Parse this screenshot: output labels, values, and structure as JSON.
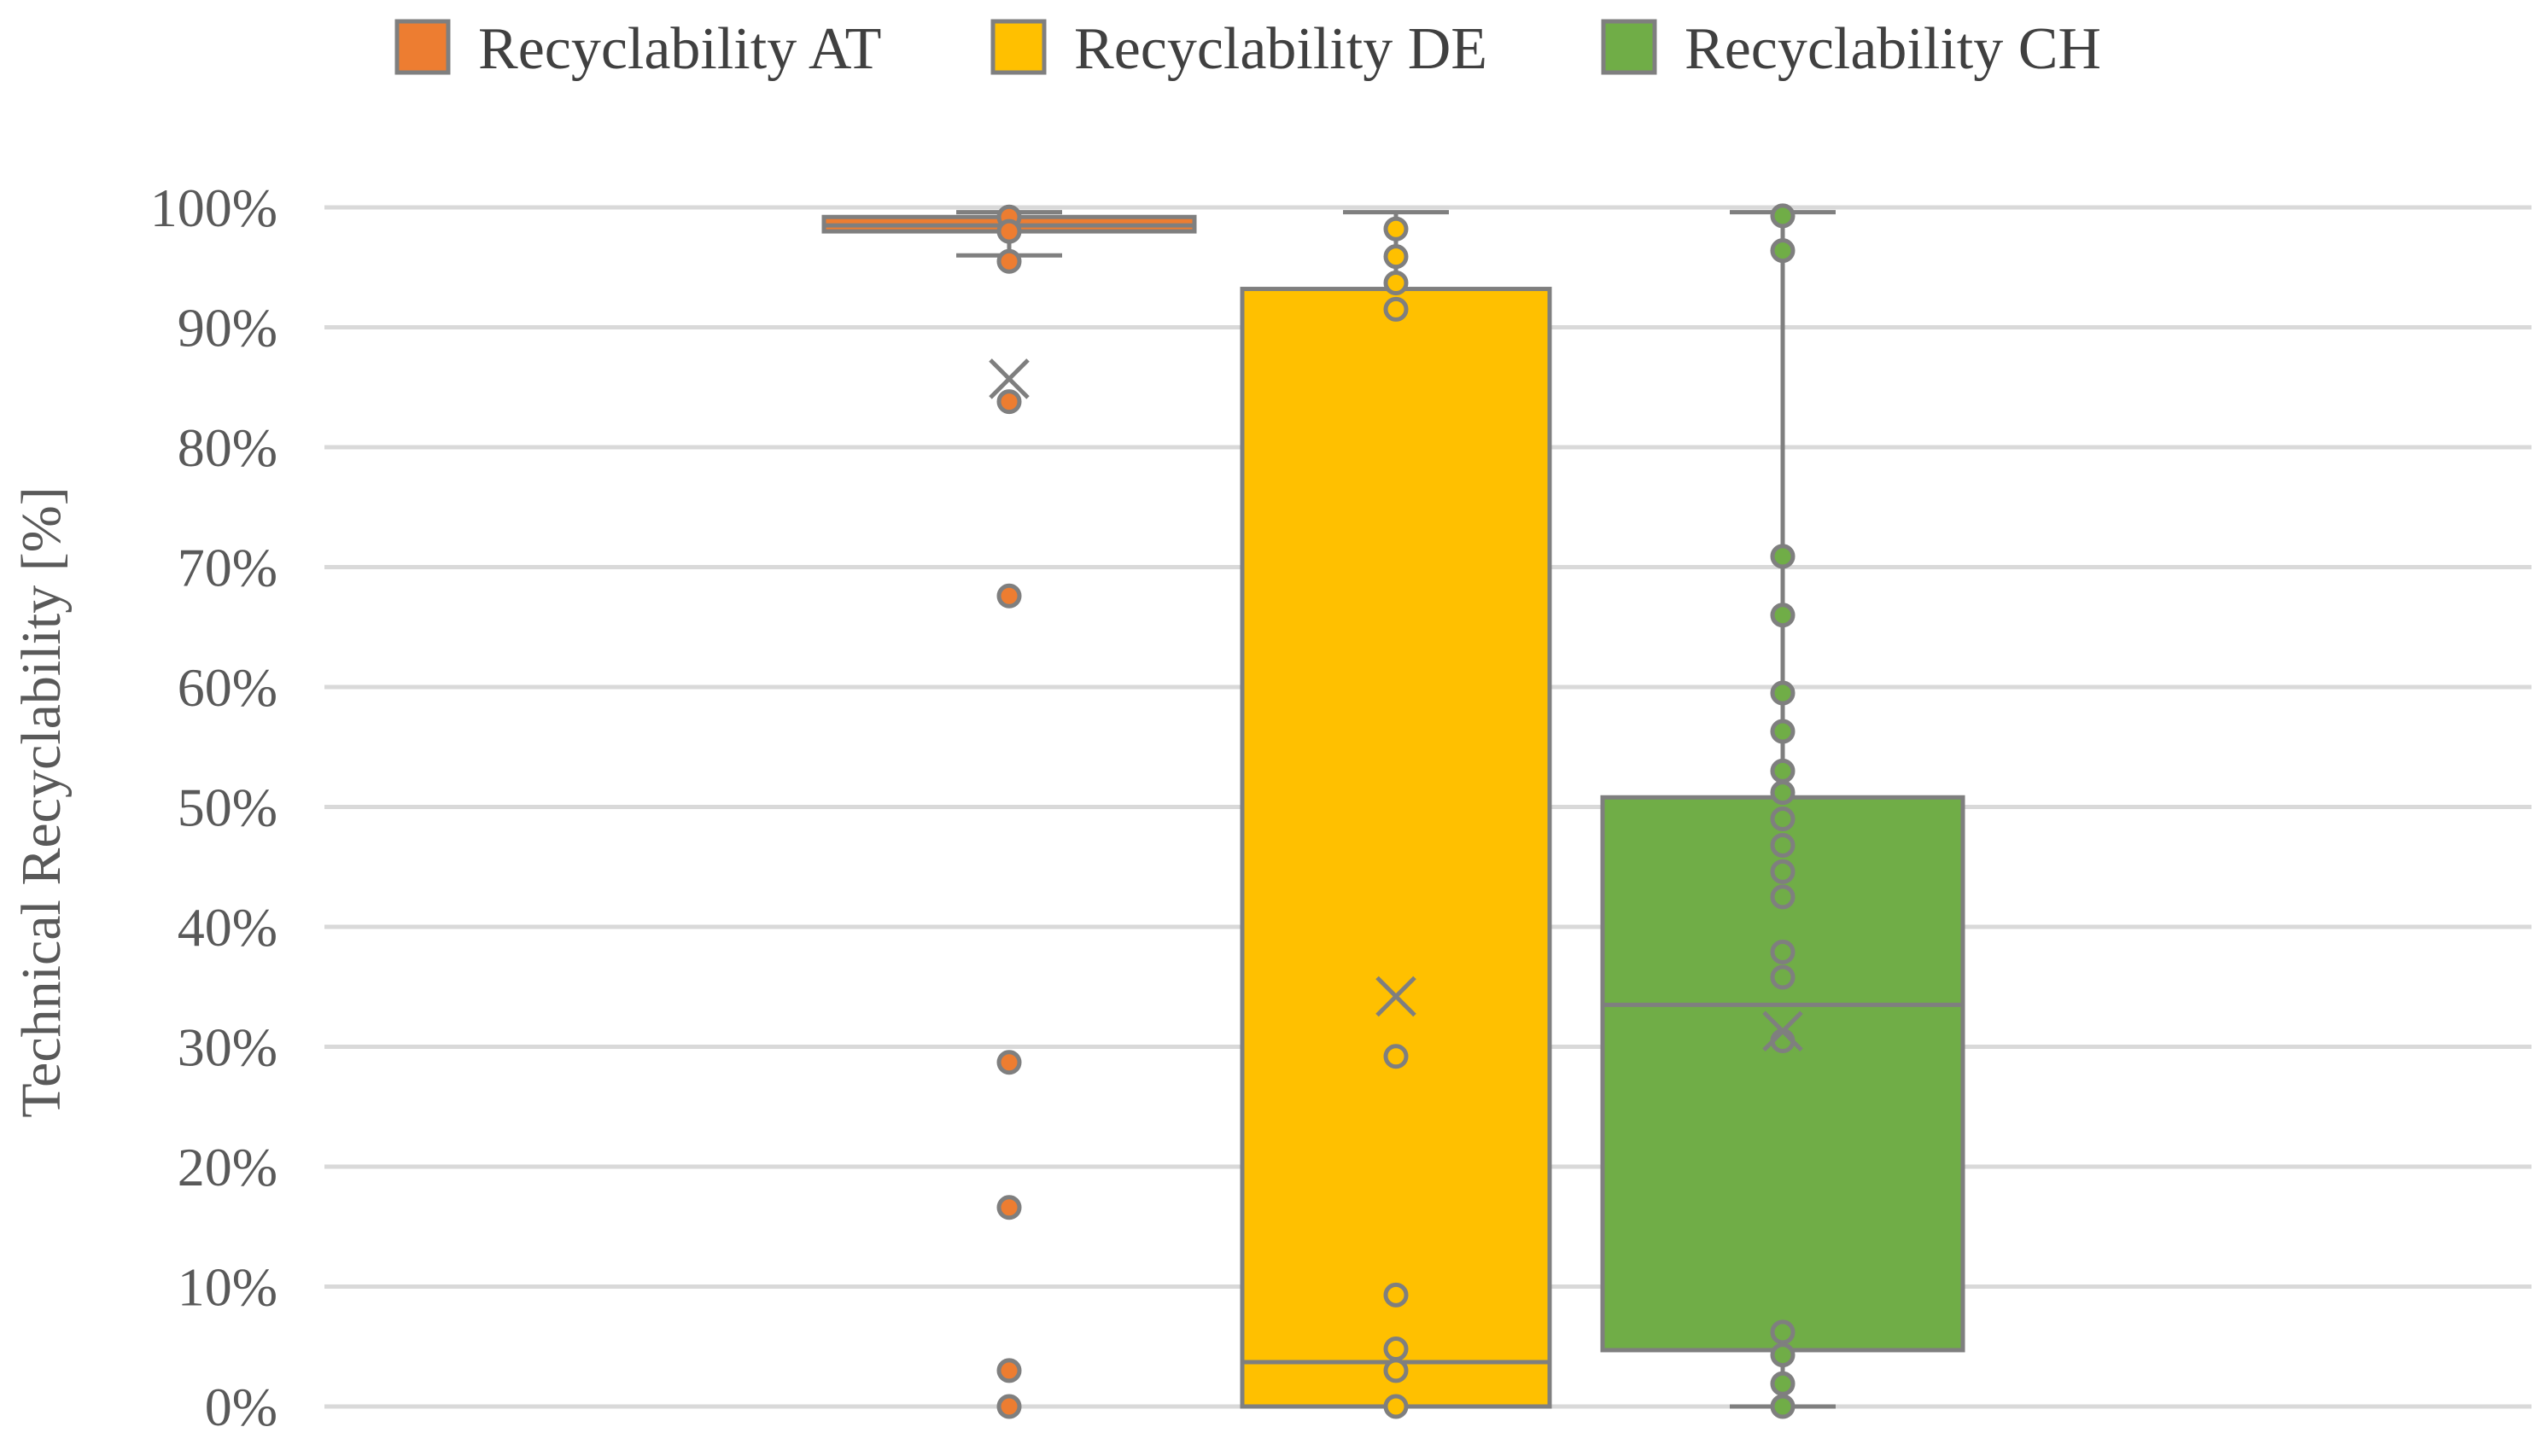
{
  "chart_data": {
    "type": "box",
    "title": "",
    "xlabel": "",
    "ylabel": "Technical Recyclability [%]",
    "ylim": [
      0,
      100
    ],
    "yticks": [
      "0%",
      "10%",
      "20%",
      "30%",
      "40%",
      "50%",
      "60%",
      "70%",
      "80%",
      "90%",
      "100%"
    ],
    "grid": true,
    "legend_position": "top",
    "series": [
      {
        "name": "Recyclability AT",
        "color": "#ED7D31",
        "whisker_low": 96.0,
        "q1": 98.0,
        "median": 98.5,
        "q3": 99.2,
        "whisker_high": 99.6,
        "mean": 85.7,
        "points": [
          99.2,
          98.0,
          95.5,
          83.8,
          67.6,
          28.7,
          16.6,
          3.0,
          0.0
        ]
      },
      {
        "name": "Recyclability DE",
        "color": "#FFC000",
        "whisker_low": 0.0,
        "q1": 0.0,
        "median": 3.7,
        "q3": 93.2,
        "whisker_high": 99.6,
        "mean": 34.2,
        "points": [
          98.2,
          95.9,
          93.7,
          91.5,
          29.2,
          9.3,
          4.8,
          3.0,
          0.0
        ]
      },
      {
        "name": "Recyclability CH",
        "color": "#70AD47",
        "whisker_low": 0.0,
        "q1": 4.7,
        "median": 33.5,
        "q3": 50.8,
        "whisker_high": 99.6,
        "mean": 31.3,
        "points": [
          99.3,
          96.4,
          70.9,
          66.0,
          59.5,
          56.3,
          53.0,
          51.2,
          49.0,
          46.8,
          44.6,
          42.5,
          37.9,
          35.8,
          30.5,
          6.2,
          4.3,
          1.9,
          0.0
        ]
      }
    ]
  }
}
